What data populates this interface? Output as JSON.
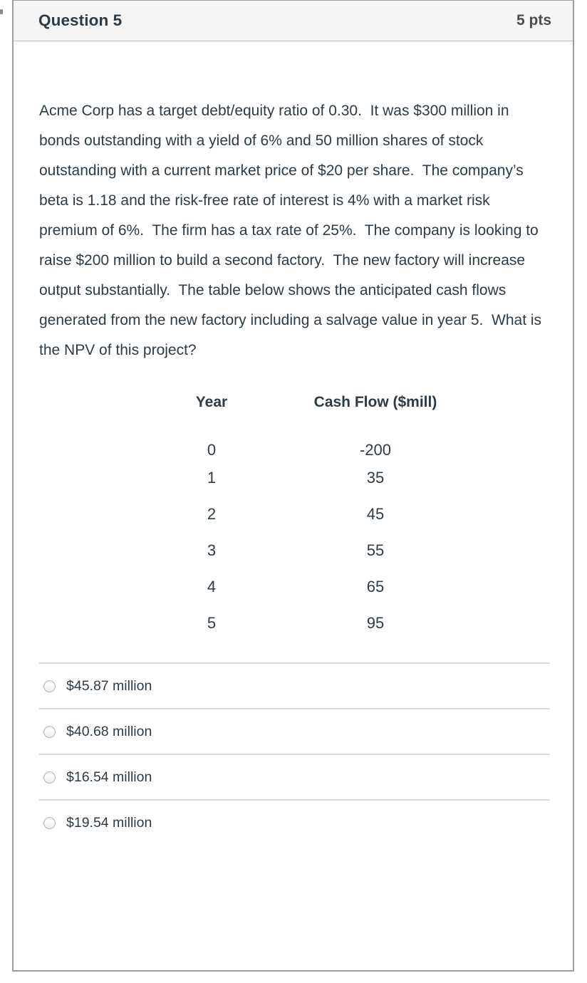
{
  "header": {
    "title": "Question 5",
    "points": "5 pts"
  },
  "question": {
    "text": "Acme Corp has a target debt/equity ratio of 0.30.  It was $300 million in bonds outstanding with a yield of 6% and 50 million shares of stock outstanding with a current market price of $20 per share.  The company’s beta is 1.18 and the risk-free rate of interest is 4% with a market risk premium of 6%.  The firm has a tax rate of 25%.  The company is looking to raise $200 million to build a second factory.  The new factory will increase output substantially.  The table below shows the anticipated cash flows generated from the new factory including a salvage value in year 5.  What is the NPV of this project?",
    "table": {
      "headers": [
        "Year",
        "Cash Flow ($mill)"
      ],
      "rows": [
        [
          "0",
          "-200"
        ],
        [
          "1",
          "35"
        ],
        [
          "2",
          "45"
        ],
        [
          "3",
          "55"
        ],
        [
          "4",
          "65"
        ],
        [
          "5",
          "95"
        ]
      ]
    },
    "options": [
      {
        "label": "$45.87 million"
      },
      {
        "label": "$40.68 million"
      },
      {
        "label": "$16.54 million"
      },
      {
        "label": "$19.54 million"
      }
    ]
  },
  "colors": {
    "text": "#2d3b45",
    "points_text": "#4d4d4d",
    "header_bg": "#f5f5f5",
    "card_border": "#9e9e9e",
    "header_border": "#bdbdbd",
    "divider": "#d9d9d9",
    "radio_border": "#b3b9be"
  }
}
